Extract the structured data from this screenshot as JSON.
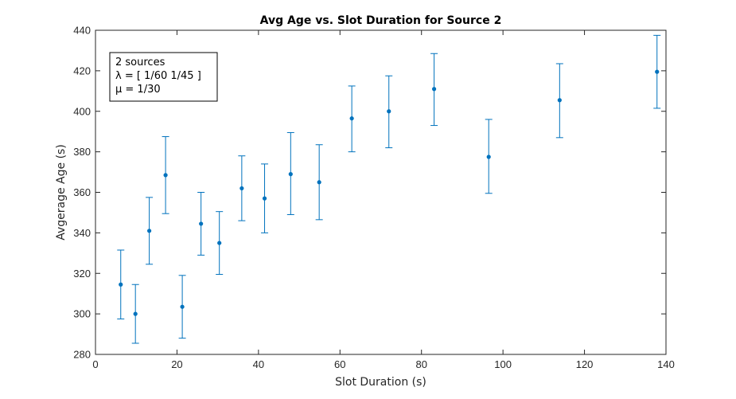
{
  "chart_data": {
    "type": "scatter",
    "title": "Avg Age vs. Slot Duration for Source 2",
    "xlabel": "Slot Duration (s)",
    "ylabel": "Avgerage Age (s)",
    "xlim": [
      0,
      140
    ],
    "ylim": [
      280,
      440
    ],
    "xticks": [
      0,
      20,
      40,
      60,
      80,
      100,
      120,
      140
    ],
    "yticks": [
      280,
      300,
      320,
      340,
      360,
      380,
      400,
      420,
      440
    ],
    "xtick_labels": [
      "0",
      "20",
      "40",
      "60",
      "80",
      "100",
      "120",
      "140"
    ],
    "ytick_labels": [
      "280",
      "300",
      "320",
      "340",
      "360",
      "380",
      "400",
      "420",
      "440"
    ],
    "grid": false,
    "series": [
      {
        "color": "#0072bd",
        "points": [
          {
            "x": 6.2,
            "y": 314.5,
            "lower": 297.5,
            "upper": 331.5
          },
          {
            "x": 9.8,
            "y": 300.0,
            "lower": 285.5,
            "upper": 314.5
          },
          {
            "x": 13.2,
            "y": 341.0,
            "lower": 324.5,
            "upper": 357.5
          },
          {
            "x": 17.2,
            "y": 368.5,
            "lower": 349.5,
            "upper": 387.5
          },
          {
            "x": 21.3,
            "y": 303.5,
            "lower": 288.0,
            "upper": 319.0
          },
          {
            "x": 25.9,
            "y": 344.5,
            "lower": 329.0,
            "upper": 360.0
          },
          {
            "x": 30.4,
            "y": 335.0,
            "lower": 319.5,
            "upper": 350.5
          },
          {
            "x": 35.9,
            "y": 362.0,
            "lower": 346.0,
            "upper": 378.0
          },
          {
            "x": 41.5,
            "y": 357.0,
            "lower": 340.0,
            "upper": 374.0
          },
          {
            "x": 47.9,
            "y": 369.0,
            "lower": 349.0,
            "upper": 389.5
          },
          {
            "x": 54.9,
            "y": 365.0,
            "lower": 346.5,
            "upper": 383.5
          },
          {
            "x": 62.9,
            "y": 396.5,
            "lower": 380.0,
            "upper": 412.5
          },
          {
            "x": 72.0,
            "y": 400.0,
            "lower": 382.0,
            "upper": 417.5
          },
          {
            "x": 83.1,
            "y": 411.0,
            "lower": 393.0,
            "upper": 428.5
          },
          {
            "x": 96.5,
            "y": 377.5,
            "lower": 359.5,
            "upper": 396.0
          },
          {
            "x": 113.9,
            "y": 405.5,
            "lower": 387.0,
            "upper": 423.5
          },
          {
            "x": 137.8,
            "y": 419.5,
            "lower": 401.5,
            "upper": 437.5
          }
        ]
      }
    ],
    "legend_box": {
      "location": "top-left",
      "lines": [
        "2 sources",
        "λ = [ 1/60 1/45 ]",
        "μ = 1/30"
      ]
    }
  }
}
